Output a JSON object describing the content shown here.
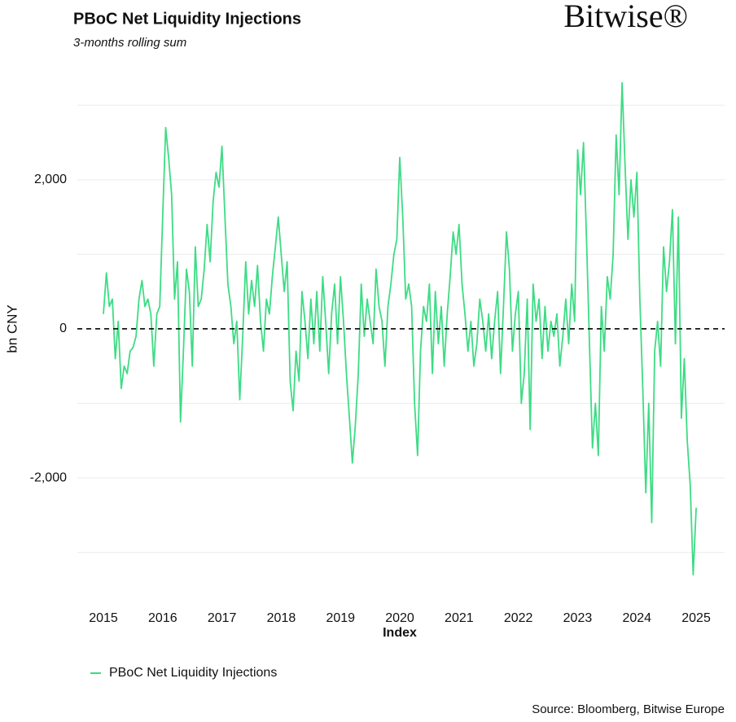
{
  "chart_data": {
    "type": "line",
    "title": "PBoC Net Liquidity Injections",
    "subtitle": "3-months rolling sum",
    "brand": "Bitwise®",
    "x_label": "Index",
    "y_label": "bn CNY",
    "source": "Source: Bloomberg, Bitwise Europe",
    "xlim": [
      2014.56,
      2025.48
    ],
    "ylim": [
      -3670,
      3320
    ],
    "xticks": [
      2015,
      2016,
      2017,
      2018,
      2019,
      2020,
      2021,
      2022,
      2023,
      2024,
      2025
    ],
    "yticks": [
      {
        "value": -2000,
        "label": "-2,000"
      },
      0,
      {
        "value": 2000,
        "label": "2,000"
      }
    ],
    "minor_grid_y": [
      -3000,
      -1000,
      1000,
      3000
    ],
    "grid": true,
    "reference_line_y": 0,
    "legend": "bottom-left",
    "x": [
      2015,
      2015.05,
      2015.1,
      2015.15,
      2015.2,
      2015.25,
      2015.3,
      2015.35,
      2015.4,
      2015.45,
      2015.5,
      2015.55,
      2015.6,
      2015.65,
      2015.7,
      2015.75,
      2015.8,
      2015.85,
      2015.9,
      2015.95,
      2016,
      2016.05,
      2016.1,
      2016.15,
      2016.2,
      2016.25,
      2016.3,
      2016.35,
      2016.4,
      2016.45,
      2016.5,
      2016.55,
      2016.6,
      2016.65,
      2016.7,
      2016.75,
      2016.8,
      2016.85,
      2016.9,
      2016.95,
      2017,
      2017.05,
      2017.1,
      2017.15,
      2017.2,
      2017.25,
      2017.3,
      2017.35,
      2017.4,
      2017.45,
      2017.5,
      2017.55,
      2017.6,
      2017.65,
      2017.7,
      2017.75,
      2017.8,
      2017.85,
      2017.9,
      2017.95,
      2018,
      2018.05,
      2018.1,
      2018.15,
      2018.2,
      2018.25,
      2018.3,
      2018.35,
      2018.4,
      2018.45,
      2018.5,
      2018.55,
      2018.6,
      2018.65,
      2018.7,
      2018.75,
      2018.8,
      2018.85,
      2018.9,
      2018.95,
      2019,
      2019.05,
      2019.1,
      2019.15,
      2019.2,
      2019.25,
      2019.3,
      2019.35,
      2019.4,
      2019.45,
      2019.5,
      2019.55,
      2019.6,
      2019.65,
      2019.7,
      2019.75,
      2019.8,
      2019.85,
      2019.9,
      2019.95,
      2020,
      2020.05,
      2020.1,
      2020.15,
      2020.2,
      2020.25,
      2020.3,
      2020.35,
      2020.4,
      2020.45,
      2020.5,
      2020.55,
      2020.6,
      2020.65,
      2020.7,
      2020.75,
      2020.8,
      2020.85,
      2020.9,
      2020.95,
      2021,
      2021.05,
      2021.1,
      2021.15,
      2021.2,
      2021.25,
      2021.3,
      2021.35,
      2021.4,
      2021.45,
      2021.5,
      2021.55,
      2021.6,
      2021.65,
      2021.7,
      2021.75,
      2021.8,
      2021.85,
      2021.9,
      2021.95,
      2022,
      2022.05,
      2022.1,
      2022.15,
      2022.2,
      2022.25,
      2022.3,
      2022.35,
      2022.4,
      2022.45,
      2022.5,
      2022.55,
      2022.6,
      2022.65,
      2022.7,
      2022.75,
      2022.8,
      2022.85,
      2022.9,
      2022.95,
      2023,
      2023.05,
      2023.1,
      2023.15,
      2023.2,
      2023.25,
      2023.3,
      2023.35,
      2023.4,
      2023.45,
      2023.5,
      2023.55,
      2023.6,
      2023.65,
      2023.7,
      2023.75,
      2023.8,
      2023.85,
      2023.9,
      2023.95,
      2024,
      2024.05,
      2024.1,
      2024.15,
      2024.2,
      2024.25,
      2024.3,
      2024.35,
      2024.4,
      2024.45,
      2024.5,
      2024.55,
      2024.6,
      2024.65,
      2024.7,
      2024.75,
      2024.8,
      2024.85,
      2024.9,
      2024.95,
      2025
    ],
    "series": [
      {
        "name": "PBoC Net Liquidity Injections",
        "color": "#3ddc84",
        "values": [
          200,
          750,
          300,
          400,
          -400,
          100,
          -800,
          -500,
          -600,
          -300,
          -250,
          -100,
          400,
          650,
          300,
          400,
          200,
          -500,
          200,
          300,
          1500,
          2700,
          2300,
          1800,
          400,
          900,
          -1250,
          -300,
          800,
          500,
          -500,
          1100,
          300,
          400,
          800,
          1400,
          900,
          1700,
          2100,
          1900,
          2450,
          1500,
          600,
          300,
          -200,
          100,
          -950,
          -100,
          900,
          200,
          650,
          300,
          850,
          100,
          -300,
          400,
          200,
          700,
          1100,
          1500,
          1000,
          500,
          900,
          -700,
          -1100,
          -300,
          -700,
          500,
          100,
          -400,
          400,
          -200,
          500,
          -300,
          700,
          100,
          -600,
          200,
          600,
          -200,
          700,
          100,
          -600,
          -1200,
          -1800,
          -1300,
          -600,
          600,
          -100,
          400,
          100,
          -200,
          800,
          300,
          100,
          -500,
          300,
          600,
          1000,
          1200,
          2300,
          1500,
          400,
          600,
          300,
          -1000,
          -1700,
          -300,
          300,
          100,
          600,
          -600,
          500,
          -200,
          300,
          -500,
          200,
          700,
          1300,
          1000,
          1400,
          600,
          200,
          -300,
          100,
          -500,
          -200,
          400,
          100,
          -300,
          200,
          -400,
          100,
          500,
          -600,
          300,
          1300,
          800,
          -300,
          200,
          500,
          -1000,
          -600,
          400,
          -1350,
          600,
          100,
          400,
          -400,
          300,
          -300,
          100,
          -100,
          200,
          -500,
          -100,
          400,
          -200,
          600,
          100,
          2400,
          1800,
          2500,
          1200,
          -200,
          -1600,
          -1000,
          -1700,
          300,
          -300,
          700,
          400,
          1000,
          2600,
          1800,
          3300,
          2200,
          1200,
          2000,
          1500,
          2100,
          400,
          -800,
          -2200,
          -1000,
          -2600,
          -300,
          100,
          -500,
          1100,
          500,
          900,
          1600,
          -200,
          1500,
          -1200,
          -400,
          -1500,
          -2100,
          -3300,
          -2400
        ]
      }
    ]
  }
}
